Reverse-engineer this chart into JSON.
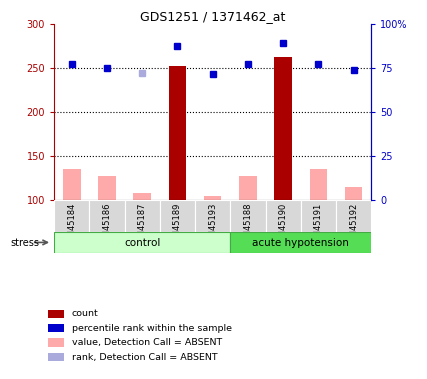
{
  "title": "GDS1251 / 1371462_at",
  "samples": [
    "GSM45184",
    "GSM45186",
    "GSM45187",
    "GSM45189",
    "GSM45193",
    "GSM45188",
    "GSM45190",
    "GSM45191",
    "GSM45192"
  ],
  "bar_values_red": [
    null,
    null,
    null,
    252,
    null,
    null,
    262,
    null,
    null
  ],
  "bar_values_pink": [
    135,
    128,
    108,
    null,
    105,
    128,
    null,
    135,
    115
  ],
  "dot_values_blue": [
    255,
    250,
    null,
    275,
    243,
    255,
    278,
    255,
    248
  ],
  "dot_values_lightblue": [
    null,
    null,
    244,
    null,
    null,
    null,
    null,
    null,
    null
  ],
  "ylim_left": [
    100,
    300
  ],
  "yticks_left": [
    100,
    150,
    200,
    250,
    300
  ],
  "yticklabels_left": [
    "100",
    "150",
    "200",
    "250",
    "300"
  ],
  "yticks_right_pct": [
    0,
    25,
    50,
    75,
    100
  ],
  "yticklabels_right": [
    "0",
    "25",
    "50",
    "75",
    "100%"
  ],
  "color_red": "#aa0000",
  "color_pink": "#ffaaaa",
  "color_blue": "#0000cc",
  "color_lightblue": "#aaaadd",
  "bar_width": 0.5,
  "ctrl_count": 5,
  "group_label_control": "control",
  "group_label_stress": "acute hypotension",
  "stress_label": "stress",
  "legend_items": [
    {
      "label": "count",
      "color": "#aa0000"
    },
    {
      "label": "percentile rank within the sample",
      "color": "#0000cc"
    },
    {
      "label": "value, Detection Call = ABSENT",
      "color": "#ffaaaa"
    },
    {
      "label": "rank, Detection Call = ABSENT",
      "color": "#aaaadd"
    }
  ]
}
